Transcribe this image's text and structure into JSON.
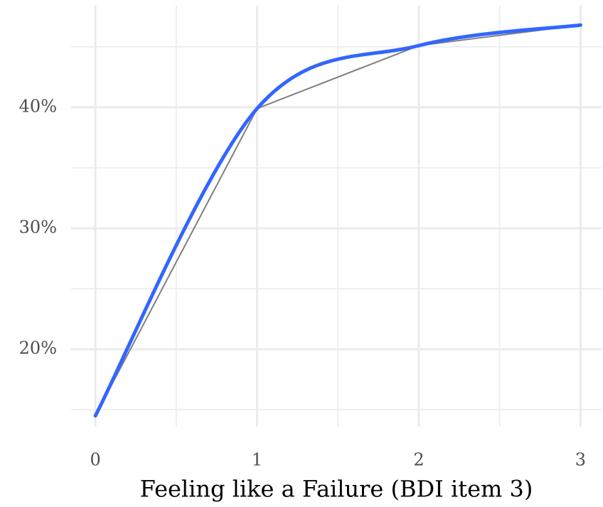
{
  "chart_data": {
    "type": "line",
    "xlabel": "Feeling like a Failure (BDI item 3)",
    "x": [
      0,
      1,
      2,
      3
    ],
    "series": [
      {
        "color": "#7f7f7f",
        "values": [
          14.5,
          39.9,
          45.1,
          46.8
        ]
      },
      {
        "color": "#3366ff",
        "smooth": true,
        "values": [
          14.5,
          39.9,
          45.1,
          46.8
        ]
      }
    ],
    "xlim": [
      -0.15,
      3.13
    ],
    "xticks": [
      0,
      1,
      2,
      3
    ],
    "xminor": [
      0.5,
      1.5,
      2.5
    ],
    "ylim": [
      13.6,
      48.4
    ],
    "yticks": [
      {
        "value": 20,
        "label": "20%"
      },
      {
        "value": 30,
        "label": "30%"
      },
      {
        "value": 40,
        "label": "40%"
      }
    ],
    "yminor": [
      15,
      25,
      35,
      45
    ],
    "grid": true
  }
}
